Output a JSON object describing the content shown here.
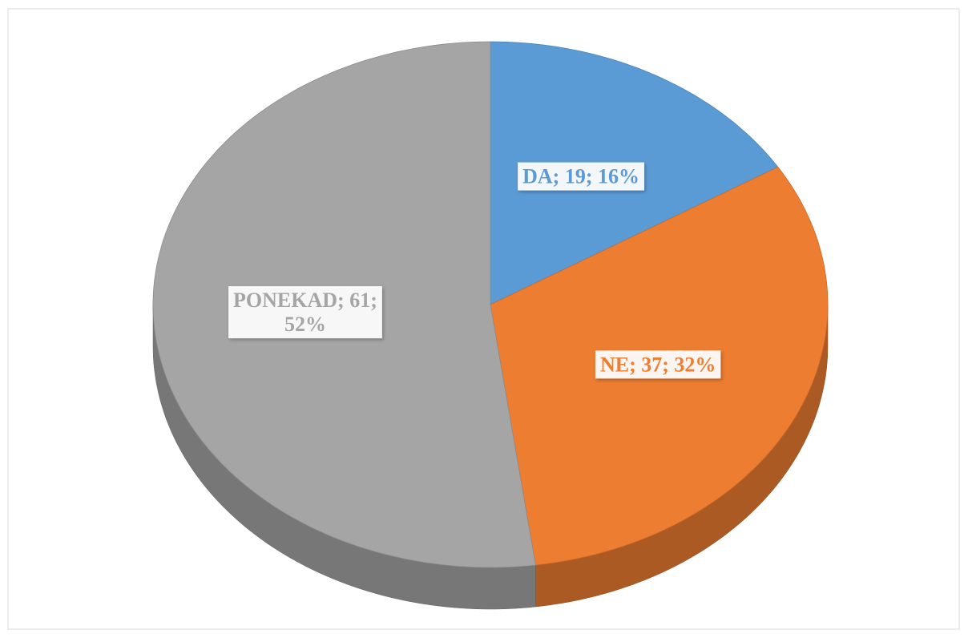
{
  "chart_data": {
    "type": "pie",
    "categories": [
      "DA",
      "NE",
      "PONEKAD"
    ],
    "values": [
      19,
      37,
      61
    ],
    "value_labels": [
      "DA; 19; 16%",
      "NE; 37; 32%",
      "PONEKAD; 61; 52%"
    ],
    "colors": [
      "#5b9bd5",
      "#ed7d31",
      "#a5a5a5"
    ]
  }
}
